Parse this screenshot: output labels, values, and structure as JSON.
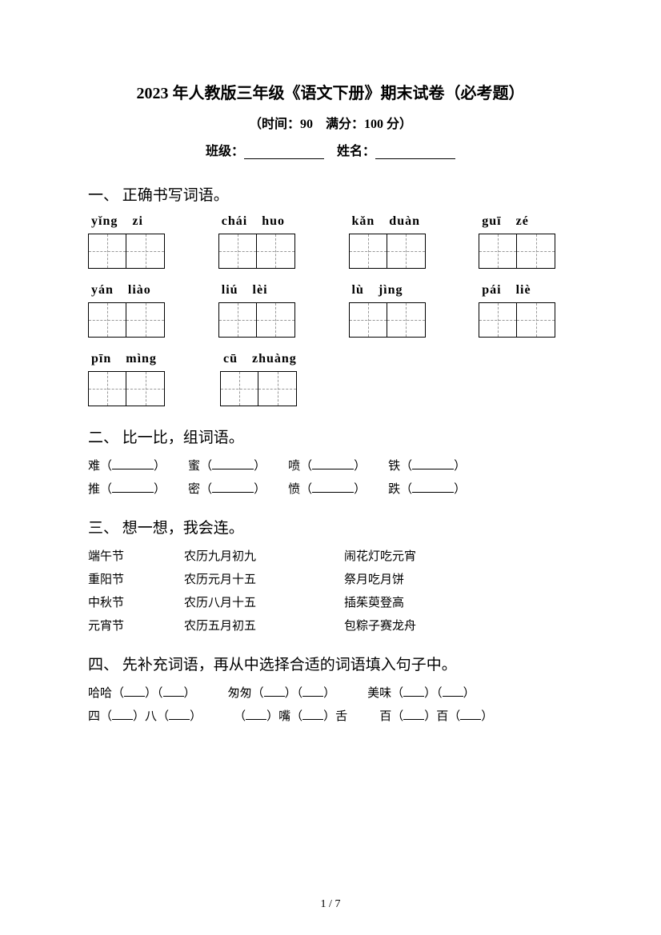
{
  "header": {
    "title": "2023 年人教版三年级《语文下册》期末试卷（必考题）",
    "subtitle": "（时间：90　满分：100 分）",
    "class_label": "班级：",
    "name_label": "姓名："
  },
  "section1": {
    "title": "一、 正确书写词语。",
    "rows": [
      [
        {
          "p1": "yǐng",
          "p2": "zi"
        },
        {
          "p1": "chái",
          "p2": "huo"
        },
        {
          "p1": "kǎn",
          "p2": "duàn"
        },
        {
          "p1": "guī",
          "p2": "zé"
        }
      ],
      [
        {
          "p1": "yán",
          "p2": "liào"
        },
        {
          "p1": "liú",
          "p2": "lèi"
        },
        {
          "p1": "lù",
          "p2": "jìng"
        },
        {
          "p1": "pái",
          "p2": "liè"
        }
      ],
      [
        {
          "p1": "pīn",
          "p2": "mìng"
        },
        {
          "p1": "cū",
          "p2": "zhuàng"
        }
      ]
    ]
  },
  "section2": {
    "title": "二、 比一比，组词语。",
    "rows": [
      [
        "难",
        "蜜",
        "喷",
        "铁"
      ],
      [
        "推",
        "密",
        "愤",
        "跌"
      ]
    ]
  },
  "section3": {
    "title": "三、 想一想，我会连。",
    "rows": [
      {
        "c1": "端午节",
        "c2": "农历九月初九",
        "c3": "闹花灯吃元宵"
      },
      {
        "c1": "重阳节",
        "c2": "农历元月十五",
        "c3": "祭月吃月饼"
      },
      {
        "c1": "中秋节",
        "c2": "农历八月十五",
        "c3": "插茱萸登高"
      },
      {
        "c1": "元宵节",
        "c2": "农历五月初五",
        "c3": "包粽子赛龙舟"
      }
    ]
  },
  "section4": {
    "title": "四、 先补充词语，再从中选择合适的词语填入句子中。",
    "row1": {
      "a": "哈哈",
      "b": "匆匆",
      "c": "美味"
    },
    "row2": {
      "a1": "四",
      "a2": "八",
      "b1": "嘴",
      "b2": "舌",
      "c1": "百",
      "c2": "百"
    }
  },
  "page": {
    "current": "1",
    "total": "7"
  }
}
